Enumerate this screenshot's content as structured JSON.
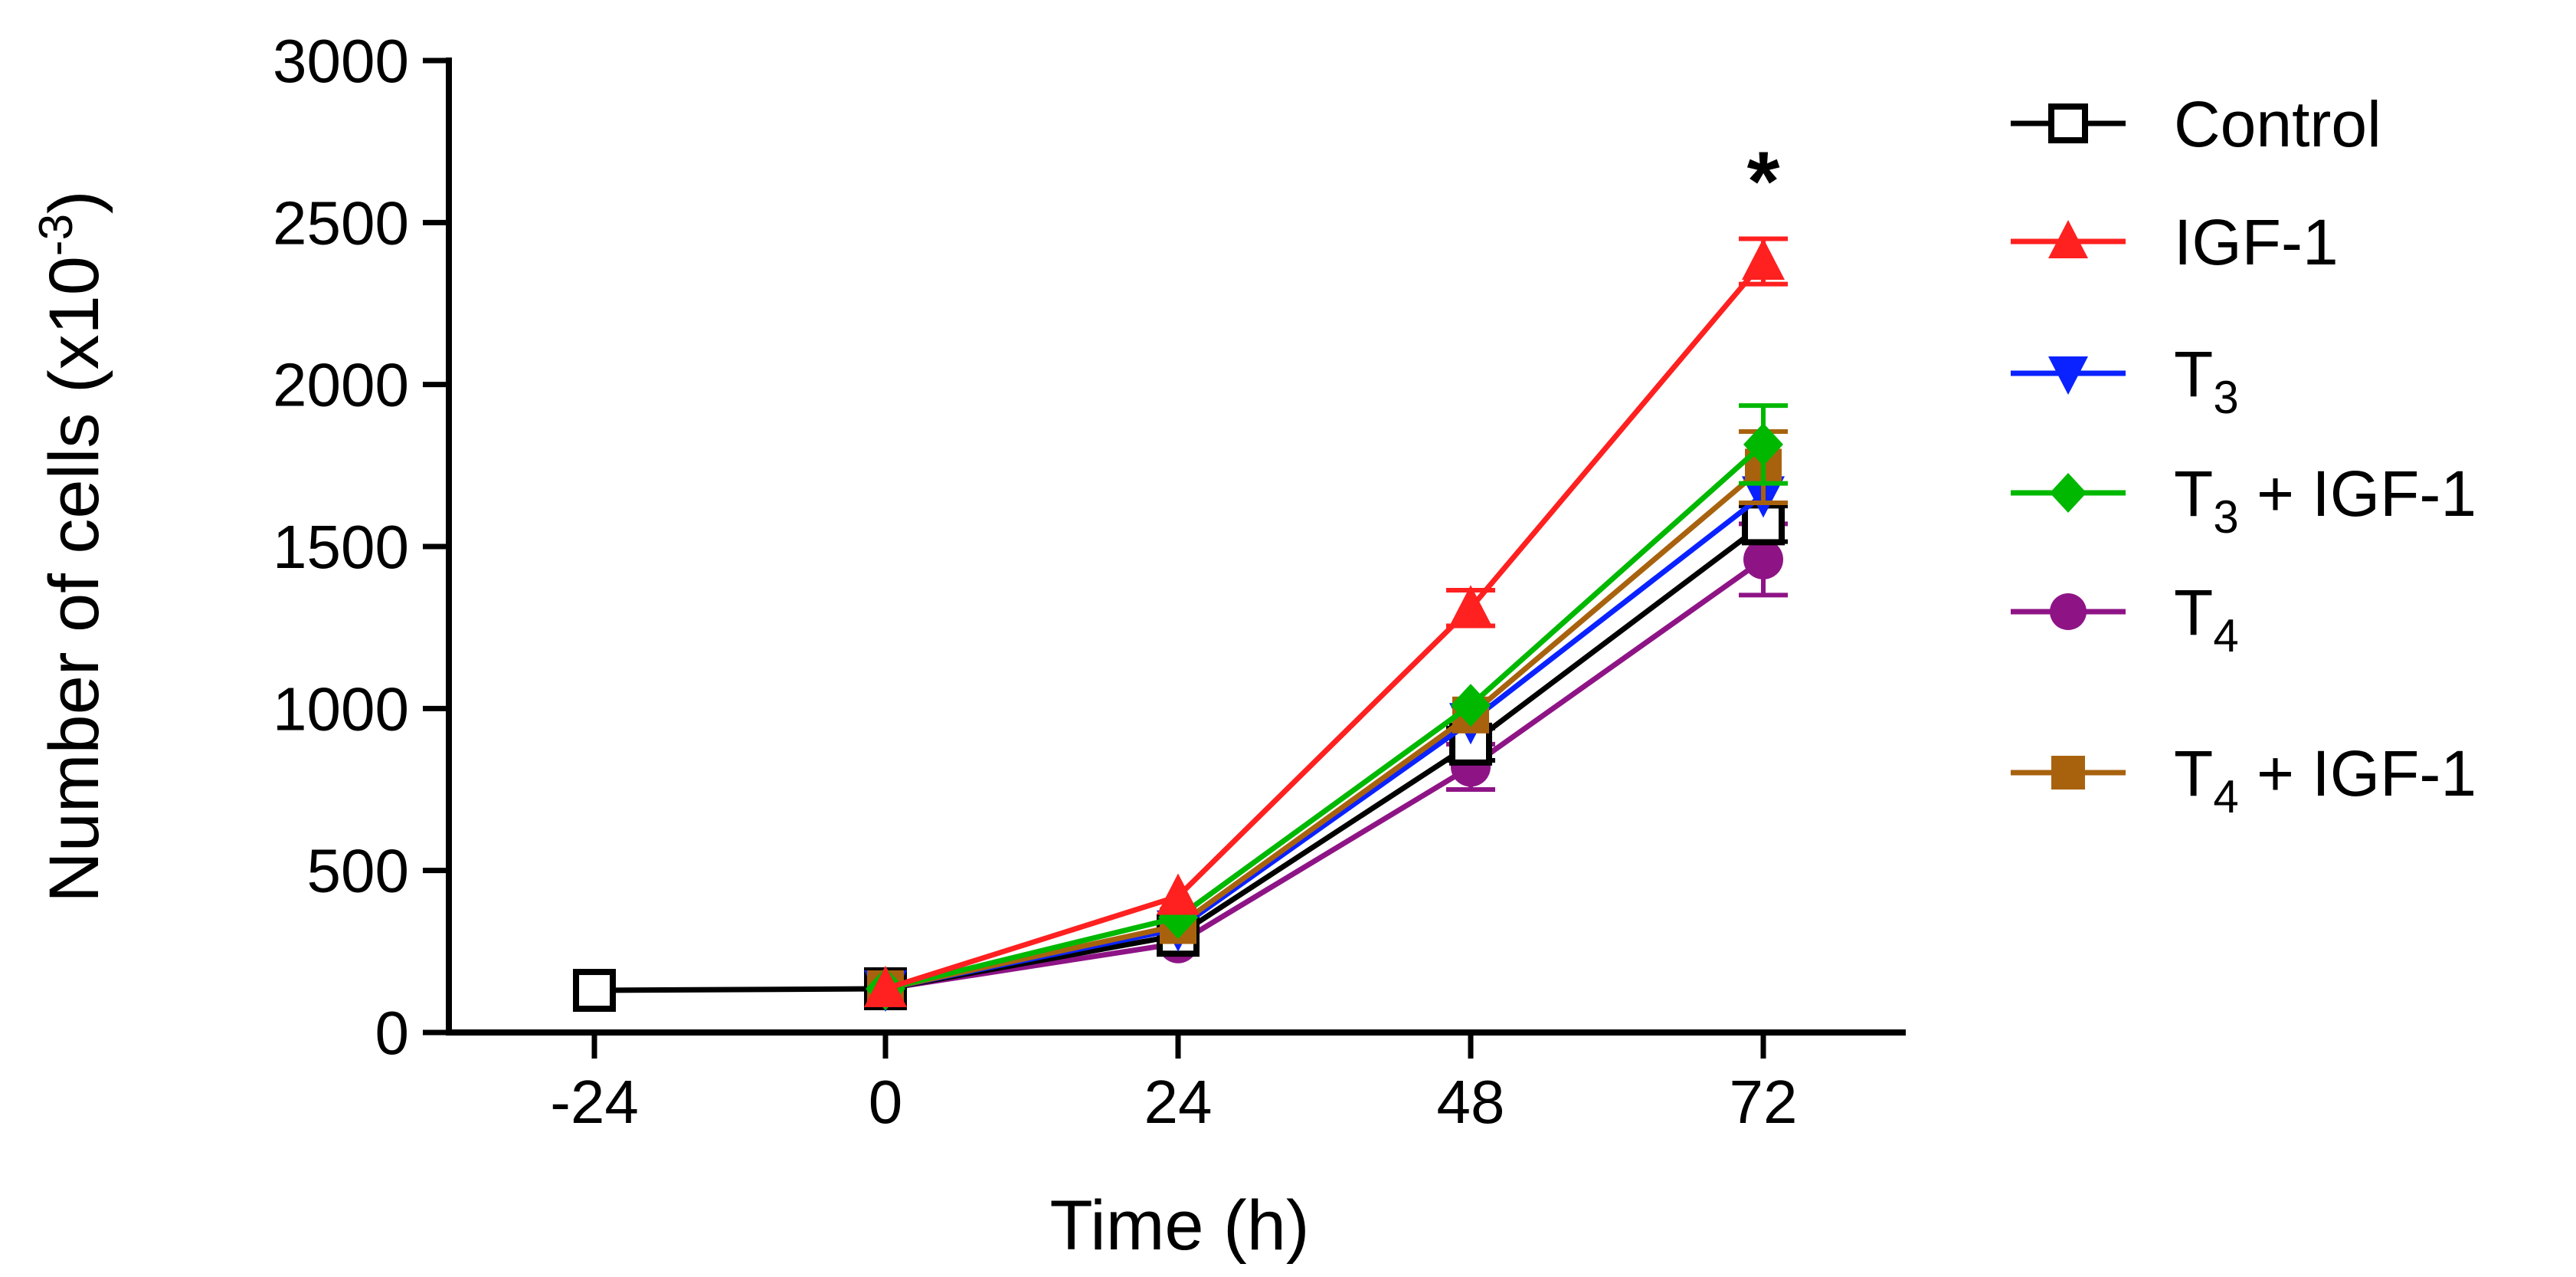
{
  "chart_data": {
    "type": "line",
    "title": "",
    "xlabel": "Time (h)",
    "ylabel": "Number of cells (x10",
    "ylabel_sup": "-3",
    "ylabel_end": ")",
    "x": [
      -24,
      0,
      24,
      48,
      72
    ],
    "x_tick_labels": [
      "-24",
      "0",
      "24",
      "48",
      "72"
    ],
    "ylim": [
      0,
      3000
    ],
    "y_ticks": [
      0,
      500,
      1000,
      1500,
      2000,
      2500,
      3000
    ],
    "y_tick_labels": [
      "0",
      "500",
      "1000",
      "1500",
      "2000",
      "2500",
      "3000"
    ],
    "grid": false,
    "legend_placement": "right",
    "annotations": [
      {
        "text": "*",
        "x": 72,
        "y": 2680
      }
    ],
    "series": [
      {
        "name": "Control",
        "sub": "",
        "suffix": "",
        "color": "#000000",
        "marker": "square-open",
        "values": [
          130,
          135,
          300,
          890,
          1570
        ],
        "errors": [
          0,
          0,
          0,
          50,
          55
        ]
      },
      {
        "name": "IGF-1",
        "sub": "",
        "suffix": "",
        "color": "#ff2020",
        "marker": "triangle-up",
        "values": [
          null,
          135,
          420,
          1310,
          2380
        ],
        "errors": [
          0,
          0,
          0,
          55,
          70
        ]
      },
      {
        "name": "T",
        "sub": "3",
        "suffix": "",
        "color": "#0a22ff",
        "marker": "triangle-down",
        "values": [
          null,
          135,
          320,
          960,
          1660
        ],
        "errors": [
          0,
          0,
          0,
          0,
          0
        ]
      },
      {
        "name": "T",
        "sub": "3",
        "suffix": " + IGF-1",
        "color": "#00b800",
        "marker": "diamond",
        "values": [
          null,
          135,
          355,
          1010,
          1815
        ],
        "errors": [
          0,
          0,
          0,
          0,
          120
        ]
      },
      {
        "name": "T",
        "sub": "4",
        "suffix": "",
        "color": "#8e1486",
        "marker": "circle",
        "values": [
          null,
          135,
          275,
          820,
          1460
        ],
        "errors": [
          0,
          0,
          0,
          70,
          110
        ]
      },
      {
        "name": "T",
        "sub": "4",
        "suffix": " + IGF-1",
        "color": "#a8620e",
        "marker": "square",
        "values": [
          null,
          135,
          330,
          980,
          1745
        ],
        "errors": [
          0,
          0,
          0,
          0,
          110
        ]
      }
    ]
  }
}
